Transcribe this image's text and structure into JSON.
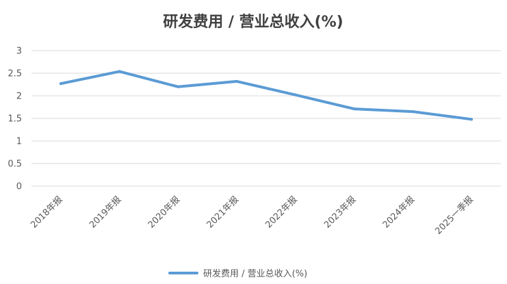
{
  "chart_data": {
    "type": "line",
    "title": "研发费用 / 营业总收入(%)",
    "xlabel": "",
    "ylabel": "",
    "categories": [
      "2018年报",
      "2019年报",
      "2020年报",
      "2021年报",
      "2022年报",
      "2023年报",
      "2024年报",
      "2025一季报"
    ],
    "series": [
      {
        "name": "研发费用 / 营业总收入(%)",
        "values": [
          2.27,
          2.54,
          2.2,
          2.32,
          2.02,
          1.71,
          1.65,
          1.48
        ],
        "color": "#5b9bd5"
      }
    ],
    "ylim": [
      0,
      3
    ],
    "yticks": [
      "0",
      "0.5",
      "1",
      "1.5",
      "2",
      "2.5",
      "3"
    ],
    "grid": true,
    "legend_position": "bottom"
  }
}
